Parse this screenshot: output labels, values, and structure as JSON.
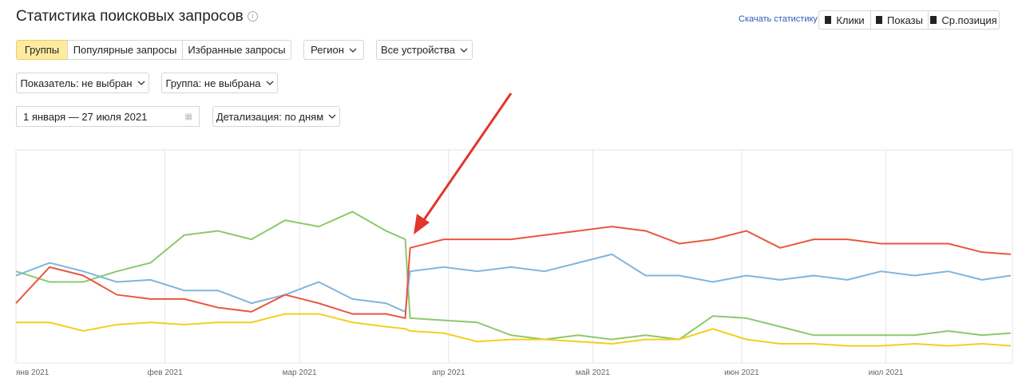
{
  "header": {
    "title": "Статистика поисковых запросов",
    "download": "Скачать статистику",
    "buttons": [
      "Клики",
      "Показы",
      "Ср.позиция"
    ]
  },
  "tabs": [
    "Группы",
    "Популярные запросы",
    "Избранные запросы"
  ],
  "filters": {
    "region": "Регион",
    "devices": "Все устройства",
    "metric": "Показатель: не выбран",
    "group": "Группа: не выбрана",
    "dates": "1 января — 27 июля 2021",
    "detail": "Детализация: по дням"
  },
  "chart_data": {
    "type": "line",
    "grid": true,
    "x": [
      1,
      8,
      15,
      22,
      29,
      36,
      43,
      50,
      57,
      64,
      71,
      78,
      82,
      83,
      90,
      97,
      104,
      111,
      118,
      125,
      132,
      139,
      146,
      153,
      160,
      167,
      174,
      181,
      188,
      195,
      202,
      208
    ],
    "xlim": [
      1,
      208
    ],
    "ylim": [
      0,
      100
    ],
    "xticks": [
      {
        "value": 1,
        "label": "янв 2021"
      },
      {
        "value": 32,
        "label": "фев 2021"
      },
      {
        "value": 60,
        "label": "мар 2021"
      },
      {
        "value": 91,
        "label": "апр 2021"
      },
      {
        "value": 121,
        "label": "май 2021"
      },
      {
        "value": 152,
        "label": "июн 2021"
      },
      {
        "value": 182,
        "label": "июл 2021"
      }
    ],
    "series": [
      {
        "color": "#8dc96c",
        "values": [
          43,
          38,
          38,
          43,
          47,
          60,
          62,
          58,
          67,
          64,
          71,
          62,
          58,
          21,
          20,
          19,
          13,
          11,
          13,
          11,
          13,
          11,
          22,
          21,
          17,
          13,
          13,
          13,
          13,
          15,
          13,
          14
        ]
      },
      {
        "color": "#f3cf1d",
        "values": [
          19,
          19,
          15,
          18,
          19,
          18,
          19,
          19,
          23,
          23,
          19,
          17,
          16,
          15,
          14,
          10,
          11,
          11,
          10,
          9,
          11,
          11,
          16,
          11,
          9,
          9,
          8,
          8,
          9,
          8,
          9,
          8
        ]
      },
      {
        "color": "#7fb5de",
        "values": [
          41,
          47,
          43,
          38,
          39,
          34,
          34,
          28,
          32,
          38,
          30,
          28,
          24,
          43,
          45,
          43,
          45,
          43,
          47,
          51,
          41,
          41,
          38,
          41,
          39,
          41,
          39,
          43,
          41,
          43,
          39,
          41
        ]
      },
      {
        "color": "#e8573f",
        "values": [
          28,
          45,
          41,
          32,
          30,
          30,
          26,
          24,
          32,
          28,
          23,
          23,
          21,
          54,
          58,
          58,
          58,
          60,
          62,
          64,
          62,
          56,
          58,
          62,
          54,
          58,
          58,
          56,
          56,
          56,
          52,
          51
        ]
      }
    ]
  }
}
